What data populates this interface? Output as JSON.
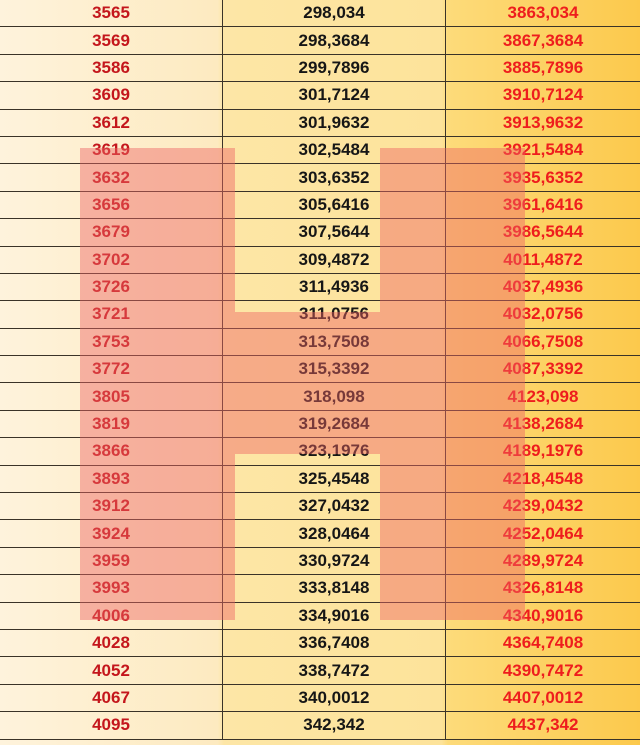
{
  "table": {
    "rows": [
      [
        "3565",
        "298,034",
        "3863,034"
      ],
      [
        "3569",
        "298,3684",
        "3867,3684"
      ],
      [
        "3586",
        "299,7896",
        "3885,7896"
      ],
      [
        "3609",
        "301,7124",
        "3910,7124"
      ],
      [
        "3612",
        "301,9632",
        "3913,9632"
      ],
      [
        "3619",
        "302,5484",
        "3921,5484"
      ],
      [
        "3632",
        "303,6352",
        "3935,6352"
      ],
      [
        "3656",
        "305,6416",
        "3961,6416"
      ],
      [
        "3679",
        "307,5644",
        "3986,5644"
      ],
      [
        "3702",
        "309,4872",
        "4011,4872"
      ],
      [
        "3726",
        "311,4936",
        "4037,4936"
      ],
      [
        "3721",
        "311,0756",
        "4032,0756"
      ],
      [
        "3753",
        "313,7508",
        "4066,7508"
      ],
      [
        "3772",
        "315,3392",
        "4087,3392"
      ],
      [
        "3805",
        "318,098",
        "4123,098"
      ],
      [
        "3819",
        "319,2684",
        "4138,2684"
      ],
      [
        "3866",
        "323,1976",
        "4189,1976"
      ],
      [
        "3893",
        "325,4548",
        "4218,4548"
      ],
      [
        "3912",
        "327,0432",
        "4239,0432"
      ],
      [
        "3924",
        "328,0464",
        "4252,0464"
      ],
      [
        "3959",
        "330,9724",
        "4289,9724"
      ],
      [
        "3993",
        "333,8148",
        "4326,8148"
      ],
      [
        "4006",
        "334,9016",
        "4340,9016"
      ],
      [
        "4028",
        "336,7408",
        "4364,7408"
      ],
      [
        "4052",
        "338,7472",
        "4390,7472"
      ],
      [
        "4067",
        "340,0012",
        "4407,0012"
      ],
      [
        "4095",
        "342,342",
        "4437,342"
      ]
    ]
  },
  "colors": {
    "col1_text": "#c4161c",
    "col2_text": "#161616",
    "col3_text": "#ee1d1d",
    "watermark": "#ee6464"
  },
  "watermark": {
    "shape": "letter-h-logo",
    "letter": "H"
  }
}
